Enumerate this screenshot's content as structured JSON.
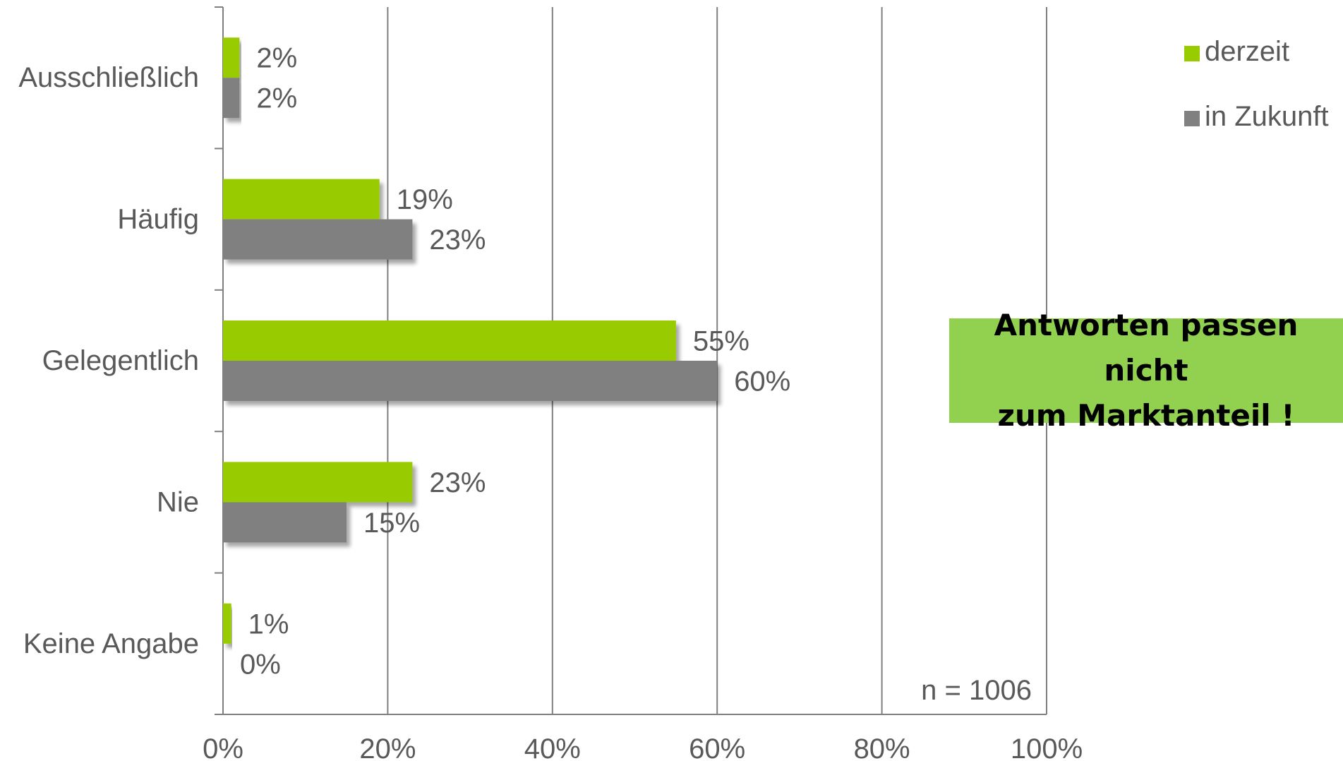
{
  "chart_data": {
    "type": "bar",
    "orientation": "horizontal",
    "categories": [
      "Ausschließlich",
      "Häufig",
      "Gelegentlich",
      "Nie",
      "Keine Angabe"
    ],
    "series": [
      {
        "name": "derzeit",
        "values": [
          2,
          19,
          55,
          23,
          1
        ],
        "labels": [
          "2%",
          "19%",
          "55%",
          "23%",
          "1%"
        ],
        "color": "#99cc00"
      },
      {
        "name": "in Zukunft",
        "values": [
          2,
          23,
          60,
          15,
          0
        ],
        "labels": [
          "2%",
          "23%",
          "60%",
          "15%",
          "0%"
        ],
        "color": "#808080"
      }
    ],
    "xlim": [
      0,
      100
    ],
    "xticks": [
      0,
      20,
      40,
      60,
      80,
      100
    ],
    "xtick_labels": [
      "0%",
      "20%",
      "40%",
      "60%",
      "80%",
      "100%"
    ],
    "grid": true,
    "legend_position": "top-right",
    "title": "",
    "xlabel": "",
    "ylabel": "",
    "note": "n = 1006"
  },
  "annotation": {
    "line1": "Antworten passen nicht",
    "line2": "zum Marktanteil !",
    "color": "#92d050"
  }
}
